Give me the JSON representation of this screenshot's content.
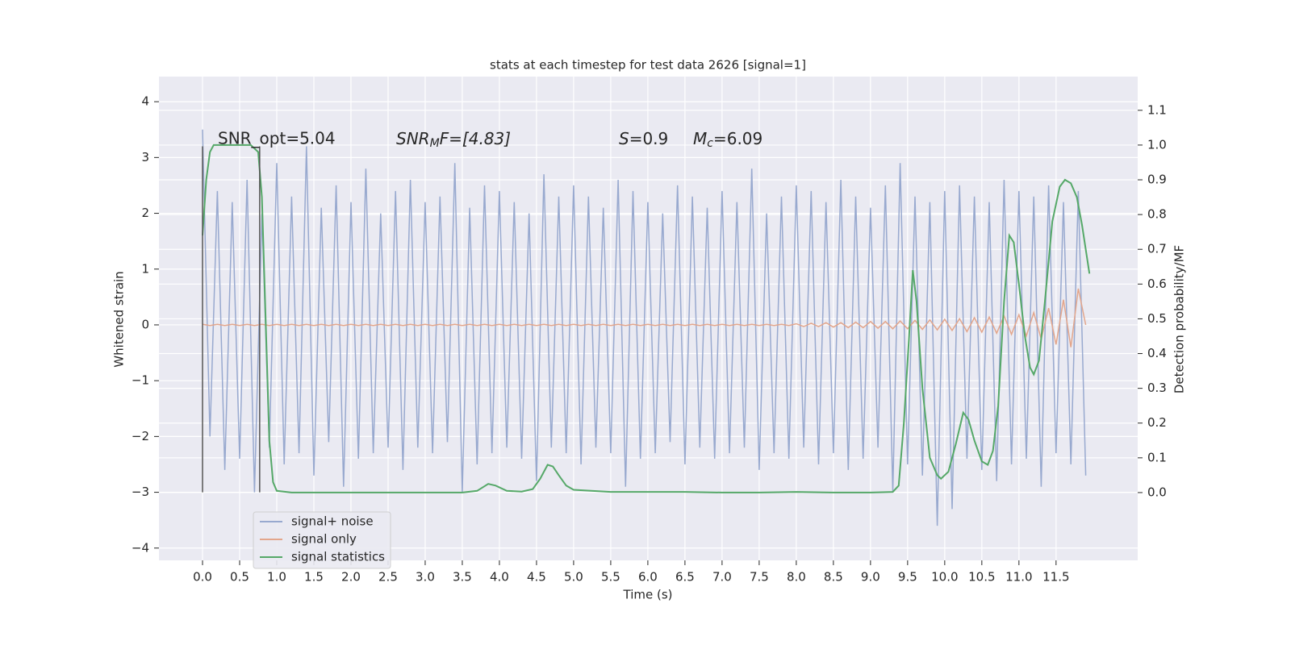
{
  "chart_data": {
    "type": "line",
    "title": "stats at each timestep for test data 2626 [signal=1]",
    "xlabel": "Time (s)",
    "ylabel": "Whitened strain",
    "y2label": "Detection probability/MF",
    "xlim": [
      -0.587,
      12.6
    ],
    "ylim": [
      -4.22,
      4.45
    ],
    "y2lim": [
      -0.195,
      1.197
    ],
    "xticks": [
      {
        "value": 0,
        "label": "0.0"
      },
      {
        "value": 0.5,
        "label": "0.5"
      },
      {
        "value": 1,
        "label": "1.0"
      },
      {
        "value": 1.5,
        "label": "1.5"
      },
      {
        "value": 2,
        "label": "2.0"
      },
      {
        "value": 2.5,
        "label": "2.5"
      },
      {
        "value": 3,
        "label": "3.0"
      },
      {
        "value": 3.5,
        "label": "3.5"
      },
      {
        "value": 4,
        "label": "4.0"
      },
      {
        "value": 4.5,
        "label": "4.5"
      },
      {
        "value": 5,
        "label": "5.0"
      },
      {
        "value": 5.5,
        "label": "5.5"
      },
      {
        "value": 6,
        "label": "6.0"
      },
      {
        "value": 6.5,
        "label": "6.5"
      },
      {
        "value": 7,
        "label": "7.0"
      },
      {
        "value": 7.5,
        "label": "7.5"
      },
      {
        "value": 8,
        "label": "8.0"
      },
      {
        "value": 8.5,
        "label": "8.5"
      },
      {
        "value": 9,
        "label": "9.0"
      },
      {
        "value": 9.5,
        "label": "9.5"
      },
      {
        "value": 10,
        "label": "10.0"
      },
      {
        "value": 10.5,
        "label": "10.5"
      },
      {
        "value": 11,
        "label": "11.0"
      },
      {
        "value": 11.5,
        "label": "11.5"
      }
    ],
    "yticks": [
      {
        "value": -4,
        "label": "−4"
      },
      {
        "value": -3,
        "label": "−3"
      },
      {
        "value": -2,
        "label": "−2"
      },
      {
        "value": -1,
        "label": "−1"
      },
      0,
      1,
      2,
      3,
      4
    ],
    "y2ticks": [
      {
        "value": 0,
        "label": "0.0"
      },
      {
        "value": 0.1,
        "label": "0.1"
      },
      {
        "value": 0.2,
        "label": "0.2"
      },
      {
        "value": 0.3,
        "label": "0.3"
      },
      {
        "value": 0.4,
        "label": "0.4"
      },
      {
        "value": 0.5,
        "label": "0.5"
      },
      {
        "value": 0.6,
        "label": "0.6"
      },
      {
        "value": 0.7,
        "label": "0.7"
      },
      {
        "value": 0.8,
        "label": "0.8"
      },
      {
        "value": 0.9,
        "label": "0.9"
      },
      {
        "value": 1,
        "label": "1.0"
      },
      {
        "value": 1.1,
        "label": "1.1"
      }
    ],
    "grid": true,
    "legend": "lower left",
    "x": [
      0,
      0.1,
      0.2,
      0.3,
      0.4,
      0.5,
      0.6,
      0.7,
      0.8,
      0.9,
      1,
      1.1,
      1.2,
      1.3,
      1.4,
      1.5,
      1.6,
      1.7,
      1.8,
      1.9,
      2,
      2.1,
      2.2,
      2.3,
      2.4,
      2.5,
      2.6,
      2.7,
      2.8,
      2.9,
      3,
      3.1,
      3.2,
      3.3,
      3.4,
      3.5,
      3.6,
      3.7,
      3.8,
      3.9,
      4,
      4.1,
      4.2,
      4.3,
      4.4,
      4.5,
      4.6,
      4.7,
      4.8,
      4.9,
      5,
      5.1,
      5.2,
      5.3,
      5.4,
      5.5,
      5.6,
      5.7,
      5.8,
      5.9,
      6,
      6.1,
      6.2,
      6.3,
      6.4,
      6.5,
      6.6,
      6.7,
      6.8,
      6.9,
      7,
      7.1,
      7.2,
      7.3,
      7.4,
      7.5,
      7.6,
      7.7,
      7.8,
      7.9,
      8,
      8.1,
      8.2,
      8.3,
      8.4,
      8.5,
      8.6,
      8.7,
      8.8,
      8.9,
      9,
      9.1,
      9.2,
      9.3,
      9.4,
      9.5,
      9.6,
      9.7,
      9.8,
      9.9,
      10,
      10.1,
      10.2,
      10.3,
      10.4,
      10.5,
      10.6,
      10.7,
      10.8,
      10.9,
      11,
      11.1,
      11.2,
      11.3,
      11.4,
      11.5,
      11.6,
      11.7,
      11.8,
      11.9
    ],
    "series": [
      {
        "name": "signal+ noise",
        "color": "#98a9cf",
        "values": [
          3.5,
          -2.0,
          2.4,
          -2.6,
          2.2,
          -2.4,
          2.6,
          -3.0,
          2.0,
          -2.2,
          2.9,
          -2.5,
          2.3,
          -2.3,
          3.2,
          -2.7,
          2.1,
          -2.1,
          2.5,
          -2.9,
          2.2,
          -2.4,
          2.8,
          -2.3,
          2.0,
          -2.2,
          2.4,
          -2.6,
          2.6,
          -2.2,
          2.2,
          -2.3,
          2.3,
          -2.1,
          2.9,
          -3.0,
          2.1,
          -2.5,
          2.5,
          -2.3,
          2.4,
          -2.2,
          2.2,
          -2.4,
          2.0,
          -2.8,
          2.7,
          -2.2,
          2.3,
          -2.3,
          2.5,
          -2.5,
          2.3,
          -2.2,
          2.1,
          -2.3,
          2.6,
          -2.9,
          2.4,
          -2.4,
          2.2,
          -2.3,
          2.0,
          -2.1,
          2.5,
          -2.5,
          2.3,
          -2.2,
          2.1,
          -2.4,
          2.4,
          -2.3,
          2.2,
          -2.2,
          2.8,
          -2.6,
          2.0,
          -2.3,
          2.3,
          -2.4,
          2.5,
          -2.2,
          2.4,
          -2.5,
          2.2,
          -2.3,
          2.6,
          -2.6,
          2.3,
          -2.4,
          2.1,
          -2.2,
          2.5,
          -3.0,
          2.9,
          -2.5,
          2.3,
          -2.7,
          2.2,
          -3.6,
          2.4,
          -3.3,
          2.5,
          -2.4,
          2.3,
          -2.6,
          2.2,
          -2.8,
          2.6,
          -2.5,
          2.4,
          -2.4,
          2.3,
          -2.9,
          2.5,
          -2.3,
          2.2,
          -2.5,
          2.4,
          -2.7
        ]
      },
      {
        "name": "signal only",
        "color": "#e3a68c",
        "values": [
          0.01,
          -0.01,
          0.01,
          -0.01,
          0.01,
          -0.01,
          0.01,
          -0.01,
          0.01,
          -0.01,
          0.01,
          -0.01,
          0.01,
          -0.01,
          0.01,
          -0.01,
          0.01,
          -0.01,
          0.01,
          -0.01,
          0.01,
          -0.01,
          0.01,
          -0.01,
          0.01,
          -0.01,
          0.01,
          -0.01,
          0.01,
          -0.01,
          0.01,
          -0.01,
          0.01,
          -0.01,
          0.01,
          -0.01,
          0.01,
          -0.01,
          0.01,
          -0.01,
          0.01,
          -0.01,
          0.01,
          -0.01,
          0.01,
          -0.01,
          0.01,
          -0.01,
          0.01,
          -0.01,
          0.01,
          -0.01,
          0.01,
          -0.01,
          0.01,
          -0.01,
          0.01,
          -0.01,
          0.01,
          -0.01,
          0.01,
          -0.01,
          0.01,
          -0.01,
          0.01,
          -0.01,
          0.01,
          -0.01,
          0.01,
          -0.01,
          0.01,
          -0.01,
          0.01,
          -0.01,
          0.01,
          -0.01,
          0.01,
          -0.01,
          0.01,
          -0.01,
          0.02,
          -0.03,
          0.03,
          -0.03,
          0.04,
          -0.04,
          0.04,
          -0.05,
          0.05,
          -0.05,
          0.06,
          -0.06,
          0.06,
          -0.07,
          0.07,
          -0.07,
          0.08,
          -0.08,
          0.09,
          -0.09,
          0.1,
          -0.1,
          0.11,
          -0.12,
          0.13,
          -0.13,
          0.14,
          -0.15,
          0.16,
          -0.17,
          0.18,
          -0.2,
          0.22,
          -0.25,
          0.3,
          -0.35,
          0.45,
          -0.4,
          0.65,
          0
        ]
      },
      {
        "name": "signal statistics",
        "color": "#55a868",
        "axis": "y2",
        "x": [
          0,
          0.05,
          0.1,
          0.15,
          0.3,
          0.5,
          0.65,
          0.75,
          0.8,
          0.85,
          0.9,
          0.95,
          1,
          1.2,
          2,
          3,
          3.5,
          3.7,
          3.85,
          3.95,
          4.1,
          4.3,
          4.45,
          4.55,
          4.65,
          4.72,
          4.8,
          4.9,
          5,
          5.5,
          6,
          6.5,
          7,
          7.5,
          8,
          8.5,
          9,
          9.3,
          9.38,
          9.45,
          9.52,
          9.57,
          9.62,
          9.7,
          9.8,
          9.9,
          9.95,
          10.05,
          10.15,
          10.25,
          10.32,
          10.4,
          10.5,
          10.58,
          10.65,
          10.72,
          10.8,
          10.87,
          10.93,
          11,
          11.08,
          11.15,
          11.2,
          11.27,
          11.35,
          11.45,
          11.55,
          11.62,
          11.7,
          11.78,
          11.85,
          11.95
        ],
        "values": [
          0.74,
          0.9,
          0.98,
          1,
          1,
          1,
          1,
          0.98,
          0.85,
          0.5,
          0.15,
          0.03,
          0.005,
          0,
          0,
          0,
          0,
          0.005,
          0.025,
          0.02,
          0.005,
          0.003,
          0.01,
          0.04,
          0.08,
          0.075,
          0.05,
          0.02,
          0.008,
          0.002,
          0.002,
          0.002,
          0,
          0,
          0.002,
          0,
          0,
          0.002,
          0.02,
          0.2,
          0.45,
          0.64,
          0.55,
          0.3,
          0.1,
          0.05,
          0.04,
          0.06,
          0.14,
          0.23,
          0.21,
          0.15,
          0.09,
          0.08,
          0.12,
          0.25,
          0.55,
          0.74,
          0.72,
          0.6,
          0.45,
          0.36,
          0.34,
          0.38,
          0.55,
          0.78,
          0.88,
          0.9,
          0.89,
          0.85,
          0.77,
          0.63
        ]
      }
    ],
    "markers": {
      "color": "#555555",
      "x": [
        0,
        0.77
      ],
      "ylim": [
        -3,
        3.2
      ]
    },
    "annotations": [
      {
        "text": "SNR_opt=5.04"
      },
      {
        "base": "SNR",
        "sub": "M",
        "rest": "F=[4.83]"
      },
      {
        "base": "S",
        "rest": "=0.9"
      },
      {
        "base": "M",
        "sub": "c",
        "rest": "=6.09"
      }
    ]
  }
}
